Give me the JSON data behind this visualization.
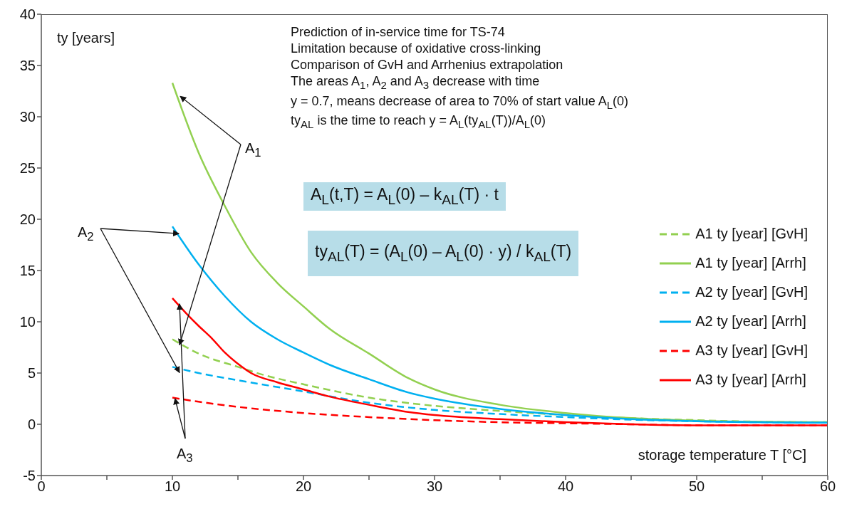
{
  "chart_data": {
    "type": "line",
    "ylabel": "ty [years]",
    "xlabel": "storage temperature T [°C]",
    "xlim": [
      0,
      60
    ],
    "ylim": [
      -5,
      40
    ],
    "xticks": [
      0,
      {
        "value": 5,
        "label": null
      },
      10,
      {
        "value": 15,
        "label": null
      },
      20,
      {
        "value": 25,
        "label": null
      },
      30,
      {
        "value": 35,
        "label": null
      },
      40,
      {
        "value": 45,
        "label": null
      },
      50,
      {
        "value": 55,
        "label": null
      },
      60
    ],
    "yticks": [
      -5,
      0,
      5,
      10,
      15,
      20,
      25,
      30,
      35,
      40
    ],
    "grid": false,
    "legend": "right",
    "marker": "none",
    "series": [
      {
        "name": "A1 ty [year] [GvH]",
        "color": "#92d050",
        "line_style": "dashed",
        "x": [
          10,
          12,
          15,
          17,
          20,
          25,
          30,
          35,
          40,
          45,
          50,
          55,
          60
        ],
        "values": [
          8.3,
          6.9,
          5.6,
          4.8,
          3.9,
          2.6,
          1.8,
          1.3,
          0.9,
          0.6,
          0.4,
          0.25,
          0.2
        ]
      },
      {
        "name": "A1 ty [year] [Arrh]",
        "color": "#92d050",
        "line_style": "solid",
        "x": [
          10,
          12,
          14,
          16,
          18,
          20,
          22,
          25,
          28,
          30,
          35,
          40,
          45,
          50,
          55,
          60
        ],
        "values": [
          33.3,
          26.5,
          21.3,
          16.8,
          13.8,
          11.5,
          9.3,
          6.9,
          4.5,
          3.4,
          1.9,
          1.1,
          0.6,
          0.35,
          0.25,
          0.2
        ]
      },
      {
        "name": "A2 ty [year] [GvH]",
        "color": "#00b0f0",
        "line_style": "dashed",
        "x": [
          10,
          12,
          15,
          20,
          25,
          30,
          35,
          40,
          45,
          50,
          55,
          60
        ],
        "values": [
          5.6,
          5.0,
          4.3,
          3.2,
          2.1,
          1.4,
          1.0,
          0.7,
          0.45,
          0.3,
          0.2,
          0.15
        ]
      },
      {
        "name": "A2 ty [year] [Arrh]",
        "color": "#00b0f0",
        "line_style": "solid",
        "x": [
          10,
          12,
          14,
          16,
          18,
          20,
          22,
          25,
          28,
          30,
          35,
          40,
          45,
          50,
          60
        ],
        "values": [
          19.3,
          15.6,
          12.5,
          10.0,
          8.3,
          7.0,
          5.8,
          4.4,
          3.1,
          2.5,
          1.5,
          0.9,
          0.5,
          0.3,
          0.15
        ]
      },
      {
        "name": "A3 ty [year] [GvH]",
        "color": "#ff0000",
        "line_style": "dashed",
        "x": [
          10,
          12,
          15,
          20,
          25,
          30,
          35,
          40,
          45,
          50,
          60
        ],
        "values": [
          2.6,
          2.2,
          1.7,
          1.1,
          0.7,
          0.4,
          0.2,
          0.1,
          0.0,
          -0.1,
          -0.1
        ]
      },
      {
        "name": "A3 ty [year] [Arrh]",
        "color": "#ff0000",
        "line_style": "solid",
        "x": [
          10,
          11,
          12,
          13,
          14,
          15,
          16,
          18,
          20,
          22,
          25,
          28,
          30,
          35,
          40,
          45,
          50,
          60
        ],
        "values": [
          12.3,
          10.9,
          9.6,
          8.4,
          7.0,
          5.9,
          5.0,
          4.1,
          3.4,
          2.7,
          1.9,
          1.2,
          0.9,
          0.5,
          0.2,
          0.0,
          -0.1,
          -0.1
        ]
      }
    ],
    "annotations": [
      "Prediction of in-service time for TS-74",
      "Limitation because of oxidative cross-linking",
      "Comparison of GvH and Arrhenius extrapolation",
      "The areas A$_{1}$, A$_{2}$ and A$_{3}$ decrease with time",
      "y = 0.7, means decrease of area to 70% of start value A$_{L}$(0)",
      "ty$_{AL}$ is the time to reach y = A$_{L}$(ty$_{AL}$(T))/A$_{L}$(0)",
      "A$_{L}$(t,T) = A$_{L}$(0) – k$_{AL}$(T) · t",
      "ty$_{AL}$(T) = (A$_{L}$(0) – A$_{L}$(0) · y) / k$_{AL}$(T)",
      {
        "text": "A$_{1}$",
        "x": 10.6,
        "y": 32
      },
      {
        "text": "A$_{2}$",
        "x": 10.5,
        "y": 18.6
      },
      {
        "text": "A$_{3}$",
        "x": 10.2,
        "y": 2.5
      }
    ]
  }
}
